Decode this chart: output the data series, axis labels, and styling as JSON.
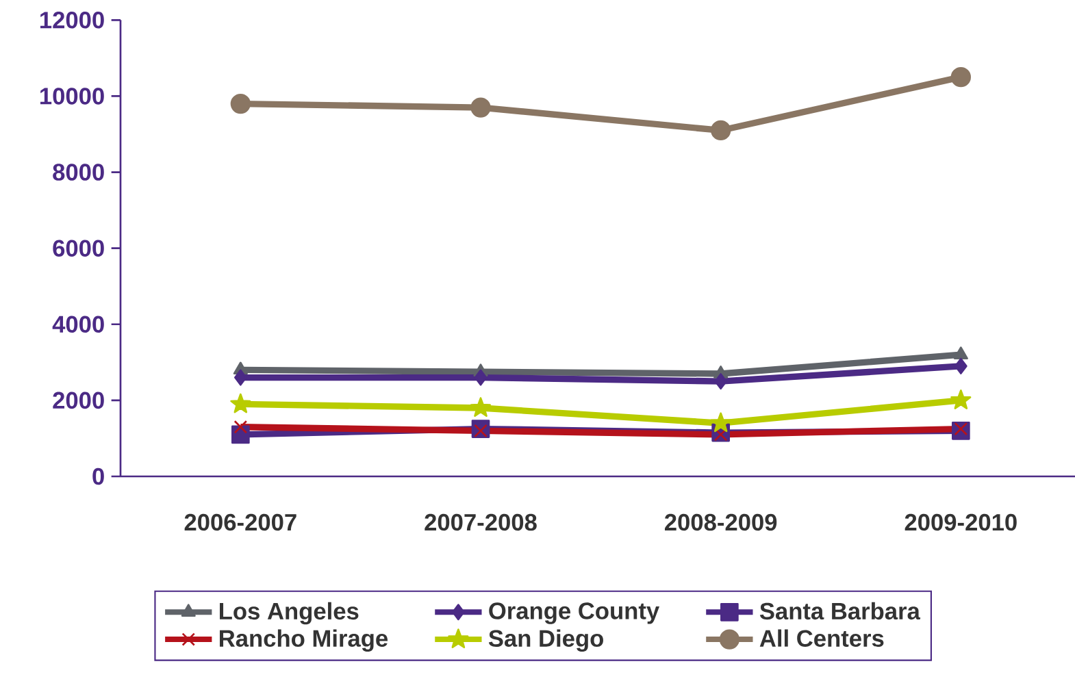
{
  "chart_data": {
    "type": "line",
    "categories": [
      "2006-2007",
      "2007-2008",
      "2008-2009",
      "2009-2010"
    ],
    "series": [
      {
        "name": "Los Angeles",
        "color": "#5f6369",
        "marker": "triangle",
        "values": [
          2800,
          2750,
          2700,
          3200
        ]
      },
      {
        "name": "Orange County",
        "color": "#4b2a85",
        "marker": "diamond",
        "values": [
          2600,
          2600,
          2500,
          2900
        ]
      },
      {
        "name": "Santa Barbara",
        "color": "#4b2a85",
        "marker": "square",
        "values": [
          1100,
          1250,
          1150,
          1200
        ]
      },
      {
        "name": "Rancho Mirage",
        "color": "#b5121b",
        "marker": "cross",
        "values": [
          1300,
          1200,
          1100,
          1250
        ]
      },
      {
        "name": "San Diego",
        "color": "#b8cc00",
        "marker": "star",
        "values": [
          1900,
          1800,
          1400,
          2000
        ]
      },
      {
        "name": "All Centers",
        "color": "#8a7663",
        "marker": "circle",
        "values": [
          9800,
          9700,
          9100,
          10500
        ]
      }
    ],
    "ylim": [
      0,
      12000
    ],
    "yticks": [
      0,
      2000,
      4000,
      6000,
      8000,
      10000,
      12000
    ],
    "grid": false,
    "legend": "bottom",
    "line_style": "solid"
  }
}
